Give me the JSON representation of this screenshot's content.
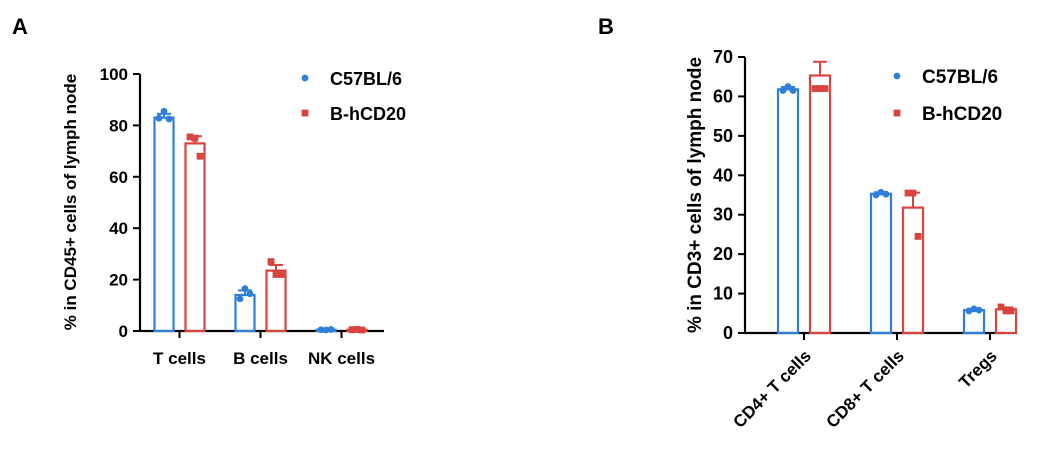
{
  "colors": {
    "blue": "#2F7FD9",
    "red": "#D9443F",
    "axis": "#000000"
  },
  "chart_data": [
    {
      "type": "bar",
      "panel_label": "A",
      "title": "",
      "ylabel": "% in CD45+ cells of lymph node",
      "xlabel": "",
      "ylim": [
        0,
        100
      ],
      "yticks": [
        "0",
        "20",
        "40",
        "60",
        "80",
        "100"
      ],
      "categories": [
        "T cells",
        "B cells",
        "NK cells"
      ],
      "legend_position": "top-right",
      "series": [
        {
          "name": "C57BL/6",
          "marker": "circle",
          "values": [
            83,
            14,
            0.5
          ],
          "errors": [
            1.5,
            1.8,
            0.2
          ],
          "points": [
            [
              82.8,
              85.5,
              82.5
            ],
            [
              12.5,
              16.5,
              14.5
            ],
            [
              0.5,
              0.4,
              0.6
            ]
          ]
        },
        {
          "name": "B-hCD20",
          "marker": "square",
          "values": [
            73,
            23.5,
            0.5
          ],
          "errors": [
            2.8,
            2.2,
            0.2
          ],
          "points": [
            [
              75.5,
              75,
              68
            ],
            [
              27,
              22,
              22
            ],
            [
              0.5,
              0.6,
              0.4
            ]
          ]
        }
      ]
    },
    {
      "type": "bar",
      "panel_label": "B",
      "title": "",
      "ylabel": "% in CD3+ cells of lymph node",
      "xlabel": "",
      "ylim": [
        0,
        70
      ],
      "yticks": [
        "0",
        "10",
        "20",
        "30",
        "40",
        "50",
        "60",
        "70"
      ],
      "categories": [
        "CD4+ T cells",
        "CD8+ T cells",
        "Tregs"
      ],
      "legend_position": "top-right",
      "series": [
        {
          "name": "C57BL/6",
          "marker": "circle",
          "values": [
            61.8,
            35.3,
            5.8
          ],
          "errors": [
            0.6,
            0.4,
            0.3
          ],
          "points": [
            [
              61.5,
              62.5,
              61.5
            ],
            [
              35,
              35.7,
              35.2
            ],
            [
              5.6,
              6.1,
              5.8
            ]
          ]
        },
        {
          "name": "B-hCD20",
          "marker": "square",
          "values": [
            65.3,
            31.8,
            6
          ],
          "errors": [
            3.5,
            3.8,
            0.5
          ],
          "points": [
            [
              62,
              62,
              62
            ],
            [
              35.5,
              35.5,
              24.5
            ],
            [
              6.6,
              5.6,
              5.6
            ]
          ]
        }
      ]
    }
  ]
}
